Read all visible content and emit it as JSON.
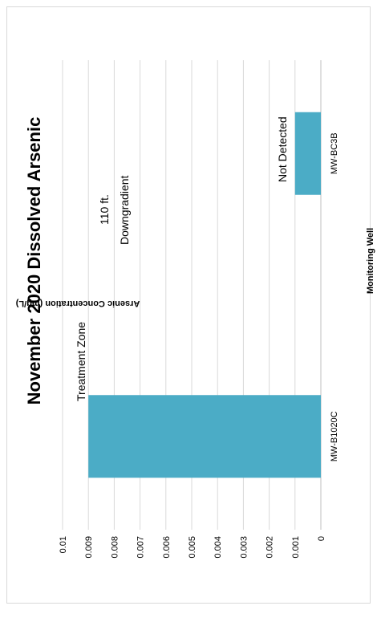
{
  "chart_data": {
    "type": "bar",
    "title": "November 2020 Dissolved Arsenic",
    "xlabel": "Monitoring Well",
    "ylabel": "Arsenic Concentration (mg/L)",
    "ylim": [
      0,
      0.01
    ],
    "yticks": [
      "0",
      "0.001",
      "0.002",
      "0.003",
      "0.004",
      "0.005",
      "0.006",
      "0.007",
      "0.008",
      "0.009",
      "0.01"
    ],
    "categories": [
      "MW-B1020C",
      "MW-BC3B"
    ],
    "values": [
      0.009,
      0.001
    ],
    "bar_color": "#4bacc6",
    "grid": true,
    "annotations": {
      "treatment_zone": "Treatment Zone",
      "distance": "110 ft.",
      "downgradient": "Downgradient",
      "not_detected": "Not Detected"
    }
  }
}
